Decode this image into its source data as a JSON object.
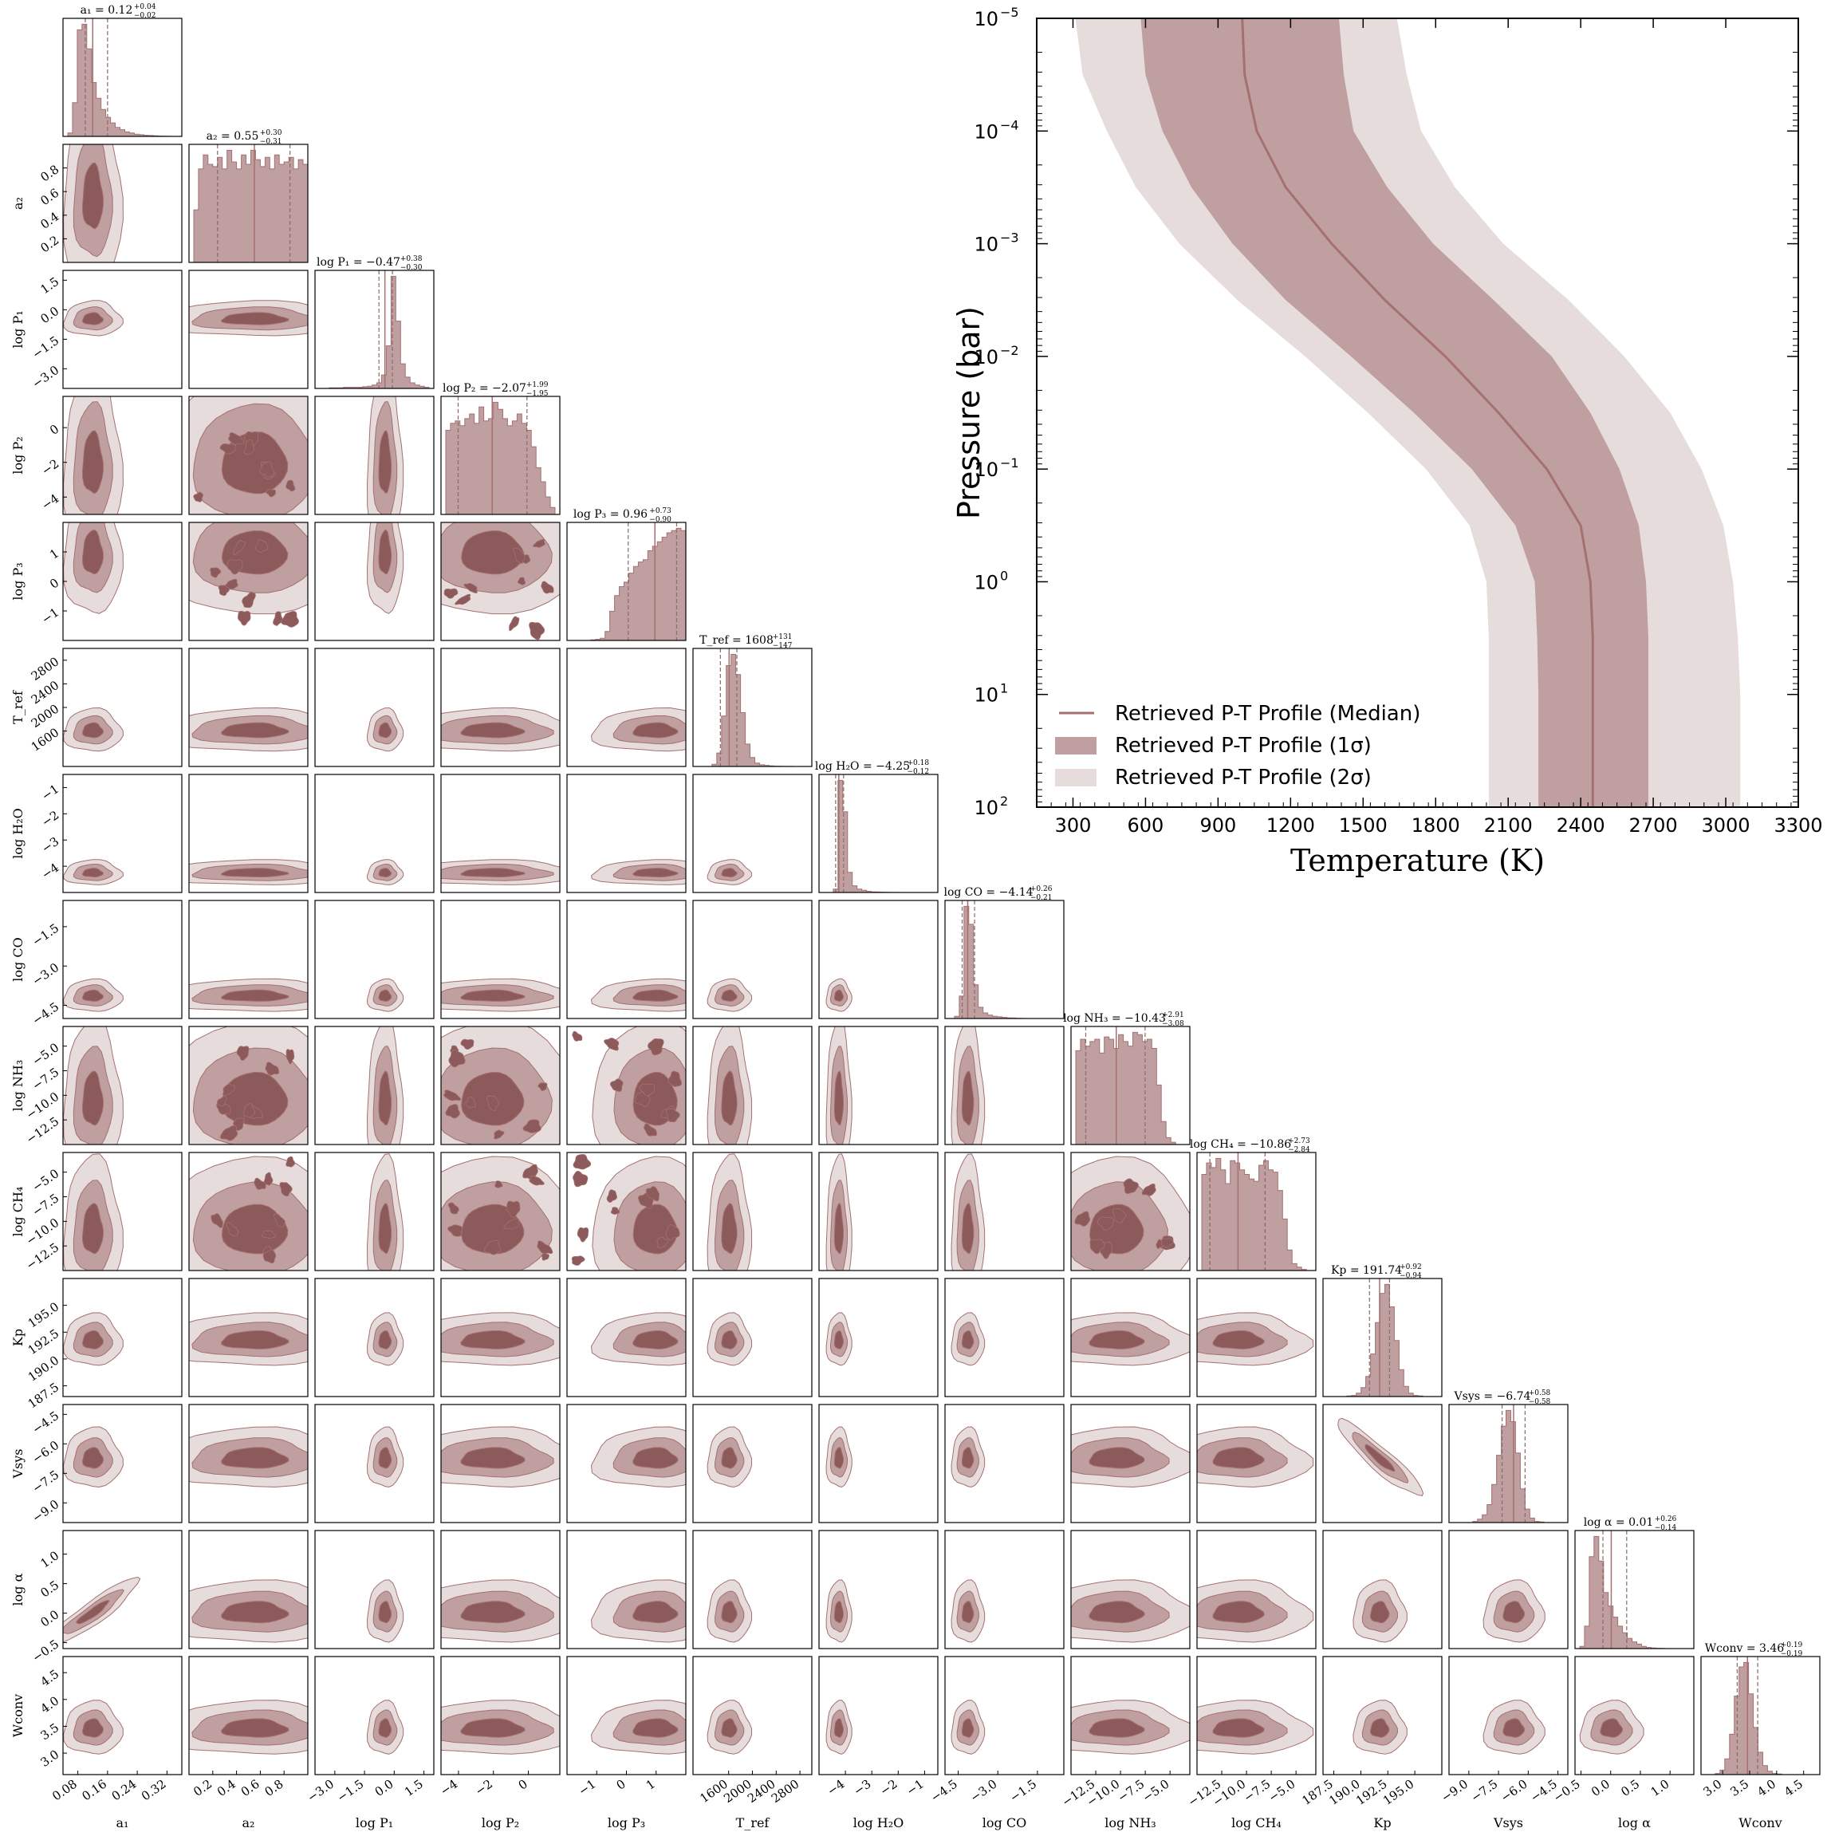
{
  "colors": {
    "dark": "#8c5a5a",
    "mid": "#bf9f9f",
    "light": "#e6dcdc",
    "line": "#a57070",
    "axis": "#000000"
  },
  "corner": {
    "params": [
      {
        "axis_label": "a₁",
        "title": "a₁ = 0.12",
        "sup": "+0.04",
        "sub": "−0.02",
        "median": 0.12,
        "range": [
          0.04,
          0.36
        ],
        "ticks": [
          "0.08",
          "0.16",
          "0.24",
          "0.32"
        ],
        "tick_values": [
          0.08,
          0.16,
          0.24,
          0.32
        ],
        "hist": [
          0,
          3,
          30,
          95,
          100,
          78,
          48,
          34,
          24,
          17,
          12,
          8,
          6,
          4,
          3,
          2,
          1.5,
          1,
          0.8,
          0.5,
          0.3,
          0.2,
          0.1,
          0,
          0
        ],
        "q16": 0.1,
        "q84": 0.16
      },
      {
        "axis_label": "a₂",
        "title": "a₂ = 0.55",
        "sup": "+0.30",
        "sub": "−0.31",
        "median": 0.55,
        "range": [
          0.0,
          1.0
        ],
        "ticks": [
          "0.2",
          "0.4",
          "0.6",
          "0.8"
        ],
        "tick_values": [
          0.2,
          0.4,
          0.6,
          0.8
        ],
        "hist": [
          0,
          45,
          80,
          92,
          84,
          82,
          90,
          80,
          96,
          86,
          80,
          92,
          84,
          96,
          88,
          82,
          90,
          80,
          92,
          84,
          86,
          90,
          80,
          88,
          84
        ],
        "q16": 0.24,
        "q84": 0.85
      },
      {
        "axis_label": "log P₁",
        "title": "log P₁ = −0.47",
        "sup": "+0.38",
        "sub": "−0.30",
        "median": -0.47,
        "range": [
          -4.0,
          2.0
        ],
        "ticks": [
          "−3.0",
          "−1.5",
          "0.0",
          "1.5"
        ],
        "tick_values": [
          -3.0,
          -1.5,
          0.0,
          1.5
        ],
        "hist": [
          0,
          0,
          0,
          0.5,
          0.5,
          0.5,
          1,
          1,
          1,
          1,
          1.5,
          2,
          3,
          5,
          12,
          38,
          100,
          60,
          22,
          10,
          5,
          3,
          2,
          1,
          0
        ],
        "q16": -0.77,
        "q84": -0.09
      },
      {
        "axis_label": "log P₂",
        "title": "log P₂ = −2.07",
        "sup": "+1.99",
        "sub": "−1.95",
        "median": -2.07,
        "range": [
          -5.0,
          1.8
        ],
        "ticks": [
          "−4",
          "−2",
          "0"
        ],
        "tick_values": [
          -4,
          -2,
          0
        ],
        "hist": [
          0,
          72,
          78,
          80,
          76,
          82,
          86,
          78,
          92,
          80,
          82,
          96,
          90,
          82,
          76,
          80,
          86,
          78,
          72,
          58,
          40,
          28,
          15,
          6,
          0
        ],
        "q16": -4.02,
        "q84": -0.08
      },
      {
        "axis_label": "log P₃",
        "title": "log P₃ = 0.96",
        "sup": "+0.73",
        "sub": "−0.90",
        "median": 0.96,
        "range": [
          -2.0,
          2.0
        ],
        "ticks": [
          "−1",
          "0",
          "1"
        ],
        "tick_values": [
          -1,
          0,
          1
        ],
        "hist": [
          0,
          0,
          0,
          0,
          0,
          0.5,
          1,
          2,
          8,
          26,
          40,
          48,
          52,
          60,
          66,
          70,
          72,
          80,
          84,
          88,
          92,
          96,
          98,
          100,
          98
        ],
        "q16": 0.06,
        "q84": 1.69
      },
      {
        "axis_label": "T_ref",
        "title": "T_ref = 1608",
        "sup": "+131",
        "sub": "−147",
        "median": 1608,
        "range": [
          1000,
          3000
        ],
        "ticks": [
          "1600",
          "2000",
          "2400",
          "2800"
        ],
        "tick_values": [
          1600,
          2000,
          2400,
          2800
        ],
        "hist": [
          0,
          0,
          0,
          0,
          2,
          12,
          45,
          90,
          100,
          82,
          48,
          20,
          8,
          3,
          1.5,
          1,
          0.5,
          0.3,
          0.2,
          0.1,
          0.1,
          0,
          0,
          0,
          0
        ],
        "q16": 1461,
        "q84": 1739
      },
      {
        "axis_label": "log H₂O",
        "title": "log H₂O = −4.25",
        "sup": "+0.18",
        "sub": "−0.12",
        "median": -4.25,
        "range": [
          -5.0,
          -0.5
        ],
        "ticks": [
          "−4",
          "−3",
          "−2",
          "−1"
        ],
        "tick_values": [
          -4,
          -3,
          -2,
          -1
        ],
        "hist": [
          0,
          0,
          0,
          3,
          100,
          72,
          18,
          6,
          3,
          2,
          1,
          0.6,
          0.4,
          0.3,
          0.2,
          0.1,
          0.1,
          0,
          0,
          0,
          0,
          0,
          0,
          0,
          0
        ],
        "q16": -4.37,
        "q84": -4.07
      },
      {
        "axis_label": "log CO",
        "title": "log CO = −4.14",
        "sup": "+0.26",
        "sub": "−0.21",
        "median": -4.14,
        "range": [
          -5.0,
          -0.5
        ],
        "ticks": [
          "−4.5",
          "−3.0",
          "−1.5"
        ],
        "tick_values": [
          -4.5,
          -3.0,
          -1.5
        ],
        "hist": [
          0,
          0,
          2,
          20,
          100,
          84,
          30,
          10,
          5,
          3,
          2,
          1.5,
          1,
          0.6,
          0.4,
          0.2,
          0.1,
          0,
          0,
          0,
          0,
          0,
          0,
          0,
          0
        ],
        "q16": -4.35,
        "q84": -3.88
      },
      {
        "axis_label": "log NH₃",
        "title": "log NH₃ = −10.43",
        "sup": "+2.91",
        "sub": "−3.08",
        "median": -10.43,
        "range": [
          -15.0,
          -3.0
        ],
        "ticks": [
          "−12.5",
          "−10.0",
          "−7.5",
          "−5.0"
        ],
        "tick_values": [
          -12.5,
          -10.0,
          -7.5,
          -5.0
        ],
        "hist": [
          0,
          82,
          92,
          86,
          90,
          92,
          80,
          94,
          92,
          84,
          96,
          90,
          86,
          98,
          96,
          90,
          92,
          84,
          52,
          20,
          6,
          2,
          0,
          0,
          0
        ],
        "q16": -13.51,
        "q84": -7.52
      },
      {
        "axis_label": "log CH₄",
        "title": "log CH₄ = −10.86",
        "sup": "+2.73",
        "sub": "−2.84",
        "median": -10.86,
        "range": [
          -15.0,
          -3.0
        ],
        "ticks": [
          "−12.5",
          "−10.0",
          "−7.5",
          "−5.0"
        ],
        "tick_values": [
          -12.5,
          -10.0,
          -7.5,
          -5.0
        ],
        "hist": [
          0,
          84,
          94,
          90,
          98,
          88,
          76,
          96,
          94,
          88,
          84,
          80,
          78,
          92,
          96,
          88,
          86,
          70,
          45,
          18,
          6,
          3,
          1,
          0,
          0
        ],
        "q16": -13.7,
        "q84": -8.13
      },
      {
        "axis_label": "Kp",
        "title": "Kp = 191.74",
        "sup": "+0.92",
        "sub": "−0.94",
        "median": 191.74,
        "range": [
          186.5,
          197.5
        ],
        "ticks": [
          "187.5",
          "190.0",
          "192.5",
          "195.0"
        ],
        "tick_values": [
          187.5,
          190.0,
          192.5,
          195.0
        ],
        "hist": [
          0,
          0,
          0,
          0,
          0,
          0.5,
          1,
          3,
          8,
          18,
          38,
          66,
          92,
          100,
          80,
          50,
          24,
          9,
          3,
          1,
          0.5,
          0,
          0,
          0,
          0
        ],
        "q16": 190.8,
        "q84": 192.66
      },
      {
        "axis_label": "Vsys",
        "title": "Vsys = −6.74",
        "sup": "+0.58",
        "sub": "−0.58",
        "median": -6.74,
        "range": [
          -10.0,
          -4.0
        ],
        "ticks": [
          "−9.0",
          "−7.5",
          "−6.0",
          "−4.5"
        ],
        "tick_values": [
          -9.0,
          -7.5,
          -6.0,
          -4.5
        ],
        "hist": [
          0,
          0,
          0,
          0,
          0,
          1,
          3,
          7,
          16,
          34,
          60,
          86,
          100,
          90,
          62,
          30,
          12,
          4,
          1,
          0.5,
          0,
          0,
          0,
          0,
          0
        ],
        "q16": -7.32,
        "q84": -6.16
      },
      {
        "axis_label": "log α",
        "title": "log α = 0.01",
        "sup": "+0.26",
        "sub": "−0.14",
        "median": 0.01,
        "range": [
          -0.6,
          1.4
        ],
        "ticks": [
          "−0.5",
          "0.0",
          "0.5",
          "1.0"
        ],
        "tick_values": [
          -0.5,
          0.0,
          0.5,
          1.0
        ],
        "hist": [
          0,
          2,
          20,
          82,
          100,
          78,
          50,
          38,
          28,
          20,
          14,
          9,
          6,
          4,
          2,
          1,
          0.5,
          0.3,
          0.2,
          0,
          0,
          0,
          0,
          0,
          0
        ],
        "q16": -0.13,
        "q84": 0.27
      },
      {
        "axis_label": "Wconv",
        "title": "Wconv = 3.46",
        "sup": "+0.19",
        "sub": "−0.19",
        "median": 3.46,
        "range": [
          2.6,
          4.8
        ],
        "ticks": [
          "3.0",
          "3.5",
          "4.0",
          "4.5"
        ],
        "tick_values": [
          3.0,
          3.5,
          4.0,
          4.5
        ],
        "hist": [
          0,
          0,
          0,
          1,
          4,
          14,
          36,
          70,
          96,
          100,
          72,
          42,
          20,
          8,
          3,
          1,
          0.5,
          0,
          0,
          0,
          0,
          0,
          0,
          0,
          0
        ],
        "q16": 3.27,
        "q84": 3.65
      }
    ]
  },
  "chart_data": [
    {
      "type": "corner",
      "parameters": [
        "a₁",
        "a₂",
        "log P₁",
        "log P₂",
        "log P₃",
        "T_ref",
        "log H₂O",
        "log CO",
        "log NH₃",
        "log CH₄",
        "Kp",
        "Vsys",
        "log α",
        "Wconv"
      ],
      "medians": [
        0.12,
        0.55,
        -0.47,
        -2.07,
        0.96,
        1608,
        -4.25,
        -4.14,
        -10.43,
        -10.86,
        191.74,
        -6.74,
        0.01,
        3.46
      ],
      "upper_errors": [
        0.04,
        0.3,
        0.38,
        1.99,
        0.73,
        131,
        0.18,
        0.26,
        2.91,
        2.73,
        0.92,
        0.58,
        0.26,
        0.19
      ],
      "lower_errors": [
        0.02,
        0.31,
        0.3,
        1.95,
        0.9,
        147,
        0.12,
        0.21,
        3.08,
        2.84,
        0.94,
        0.58,
        0.14,
        0.19
      ]
    },
    {
      "type": "area",
      "xlabel": "Temperature (K)",
      "ylabel": "Pressure (bar)",
      "xlim": [
        150,
        3300
      ],
      "ylim_log10": [
        -5,
        2
      ],
      "yscale": "log",
      "inverted_y": true,
      "xticks": [
        "300",
        "600",
        "900",
        "1200",
        "1500",
        "1800",
        "2100",
        "2400",
        "2700",
        "3000",
        "3300"
      ],
      "xtick_values": [
        300,
        600,
        900,
        1200,
        1500,
        1800,
        2100,
        2400,
        2700,
        3000,
        3300
      ],
      "yticks": [
        {
          "base": "10",
          "exp": "−5",
          "val": -5
        },
        {
          "base": "10",
          "exp": "−4",
          "val": -4
        },
        {
          "base": "10",
          "exp": "−3",
          "val": -3
        },
        {
          "base": "10",
          "exp": "−2",
          "val": -2
        },
        {
          "base": "10",
          "exp": "−1",
          "val": -1
        },
        {
          "base": "10",
          "exp": "0",
          "val": 0
        },
        {
          "base": "10",
          "exp": "1",
          "val": 1
        },
        {
          "base": "10",
          "exp": "2",
          "val": 2
        }
      ],
      "legend_position": "lower-left",
      "legend": [
        "Retrieved P-T Profile (Median)",
        "Retrieved P-T Profile (1σ)",
        "Retrieved P-T Profile (2σ)"
      ],
      "logP": [
        -5,
        -4.5,
        -4,
        -3.5,
        -3,
        -2.5,
        -2,
        -1.5,
        -1,
        -0.5,
        0,
        0.5,
        1,
        1.5,
        2
      ],
      "median": [
        1000,
        1010,
        1060,
        1180,
        1370,
        1590,
        1840,
        2060,
        2260,
        2400,
        2440,
        2450,
        2450,
        2450,
        2450
      ],
      "sigma1_low": [
        580,
        600,
        670,
        790,
        960,
        1180,
        1450,
        1710,
        1950,
        2130,
        2210,
        2220,
        2225,
        2225,
        2225
      ],
      "sigma1_high": [
        1400,
        1420,
        1460,
        1600,
        1790,
        2040,
        2280,
        2440,
        2560,
        2640,
        2670,
        2680,
        2680,
        2680,
        2680
      ],
      "sigma2_low": [
        310,
        340,
        440,
        560,
        740,
        980,
        1260,
        1520,
        1760,
        1940,
        2010,
        2020,
        2020,
        2020,
        2020
      ],
      "sigma2_high": [
        1640,
        1680,
        1740,
        1880,
        2080,
        2350,
        2580,
        2770,
        2900,
        2990,
        3030,
        3050,
        3060,
        3060,
        3060
      ]
    }
  ]
}
